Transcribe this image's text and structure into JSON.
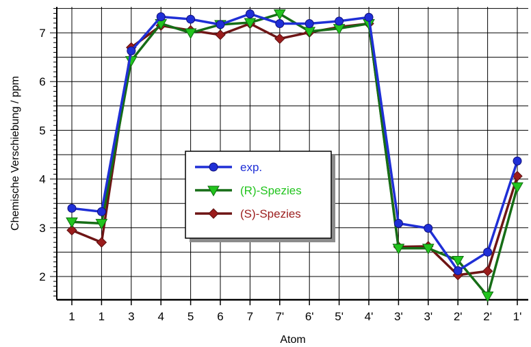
{
  "chart_data": {
    "type": "line",
    "xlabel": "Atom",
    "ylabel": "Chemische Verschiebung / ppm",
    "categories": [
      "1",
      "1",
      "3",
      "4",
      "5",
      "6",
      "7",
      "7'",
      "6'",
      "5'",
      "4'",
      "3'",
      "3'",
      "2'",
      "2'",
      "1'"
    ],
    "yticks": [
      "2",
      "3",
      "4",
      "5",
      "6",
      "7"
    ],
    "ylim": [
      1.45,
      7.55
    ],
    "grid": true,
    "legend_position": "center",
    "series": [
      {
        "name": "exp.",
        "color": "#1f2fd6",
        "marker": "circle",
        "values": [
          3.4,
          3.33,
          6.63,
          7.33,
          7.28,
          7.17,
          7.39,
          7.19,
          7.19,
          7.24,
          7.32,
          3.09,
          2.99,
          2.12,
          2.5,
          4.37
        ]
      },
      {
        "name": "(R)-Spezies",
        "color": "#22c41e",
        "marker": "triangle-down",
        "values": [
          3.12,
          3.09,
          6.43,
          7.19,
          7.0,
          7.17,
          7.21,
          7.39,
          7.03,
          7.09,
          7.19,
          2.58,
          2.58,
          2.33,
          1.6,
          3.84
        ]
      },
      {
        "name": "(S)-Spezies",
        "color": "#9b1c1c",
        "marker": "diamond",
        "values": [
          2.95,
          2.7,
          6.7,
          7.15,
          7.05,
          6.96,
          7.19,
          6.88,
          7.01,
          7.12,
          7.19,
          2.61,
          2.62,
          2.03,
          2.11,
          4.06
        ]
      }
    ]
  }
}
